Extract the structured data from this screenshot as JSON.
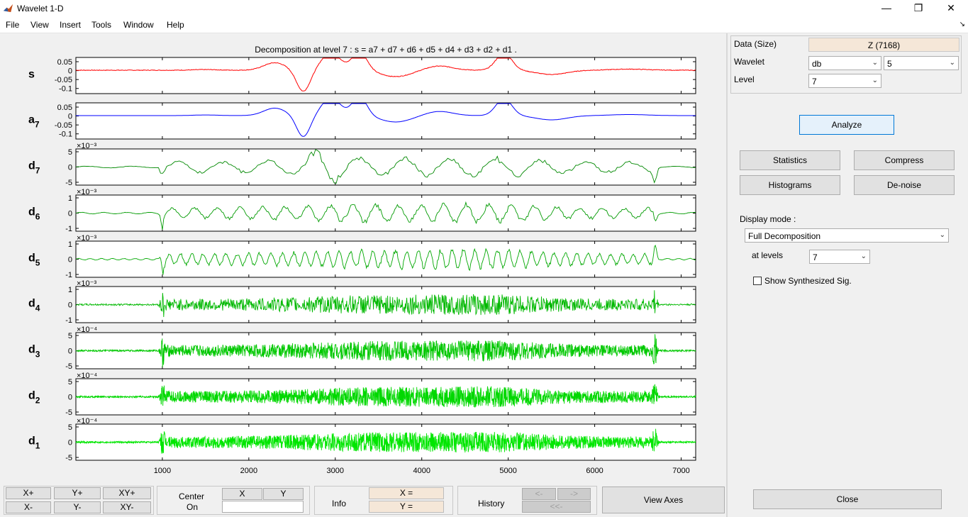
{
  "window": {
    "title": "Wavelet 1-D",
    "minimize": "—",
    "maximize": "❐",
    "close": "✕"
  },
  "menu": [
    "File",
    "View",
    "Insert",
    "Tools",
    "Window",
    "Help"
  ],
  "figure": {
    "title": "Decomposition at level 7 : s = a7 + d7 + d6 + d5 + d4 + d3 + d2 + d1 .",
    "xticks": [
      "1000",
      "2000",
      "3000",
      "4000",
      "5000",
      "6000",
      "7000"
    ],
    "colors": {
      "signal": "#ff0000",
      "approx": "#0000ff",
      "detail": [
        "#008800",
        "#009a00",
        "#00a800",
        "#00b800",
        "#00c800",
        "#00d800",
        "#00e600"
      ]
    },
    "panels": [
      {
        "name": "s",
        "sub": "",
        "exp": "",
        "ticks": [
          "0.05",
          "0",
          "-0.05",
          "-0.1"
        ]
      },
      {
        "name": "a",
        "sub": "7",
        "exp": "",
        "ticks": [
          "0.05",
          "0",
          "-0.05",
          "-0.1"
        ]
      },
      {
        "name": "d",
        "sub": "7",
        "exp": "×10⁻³",
        "ticks": [
          "5",
          "0",
          "-5"
        ]
      },
      {
        "name": "d",
        "sub": "6",
        "exp": "×10⁻³",
        "ticks": [
          "1",
          "0",
          "-1"
        ]
      },
      {
        "name": "d",
        "sub": "5",
        "exp": "×10⁻³",
        "ticks": [
          "1",
          "0",
          "-1"
        ]
      },
      {
        "name": "d",
        "sub": "4",
        "exp": "×10⁻³",
        "ticks": [
          "1",
          "0",
          "-1"
        ]
      },
      {
        "name": "d",
        "sub": "3",
        "exp": "×10⁻⁴",
        "ticks": [
          "5",
          "0",
          "-5"
        ]
      },
      {
        "name": "d",
        "sub": "2",
        "exp": "×10⁻⁴",
        "ticks": [
          "5",
          "0",
          "-5"
        ]
      },
      {
        "name": "d",
        "sub": "1",
        "exp": "×10⁻⁴",
        "ticks": [
          "5",
          "0",
          "-5"
        ]
      }
    ]
  },
  "right_panel": {
    "data_label": "Data  (Size)",
    "data_value": "Z  (7168)",
    "wavelet_label": "Wavelet",
    "wavelet_family": "db",
    "wavelet_order": "5",
    "level_label": "Level",
    "level_value": "7",
    "analyze": "Analyze",
    "statistics": "Statistics",
    "compress": "Compress",
    "histograms": "Histograms",
    "denoise": "De-noise",
    "display_mode_label": "Display mode :",
    "display_mode_value": "Full Decomposition",
    "at_levels_label": "at levels",
    "at_levels_value": "7",
    "show_synth": "Show Synthesized Sig.",
    "close": "Close"
  },
  "bottom": {
    "xplus": "X+",
    "yplus": "Y+",
    "xyplus": "XY+",
    "xminus": "X-",
    "yminus": "Y-",
    "xyminus": "XY-",
    "center_on_line1": "Center",
    "center_on_line2": "On",
    "center_x": "X",
    "center_y": "Y",
    "info": "Info",
    "info_x": "X =",
    "info_y": "Y =",
    "history": "History",
    "hist_prev": "<-",
    "hist_next": "->",
    "hist_first": "<<-",
    "view_axes": "View Axes"
  }
}
